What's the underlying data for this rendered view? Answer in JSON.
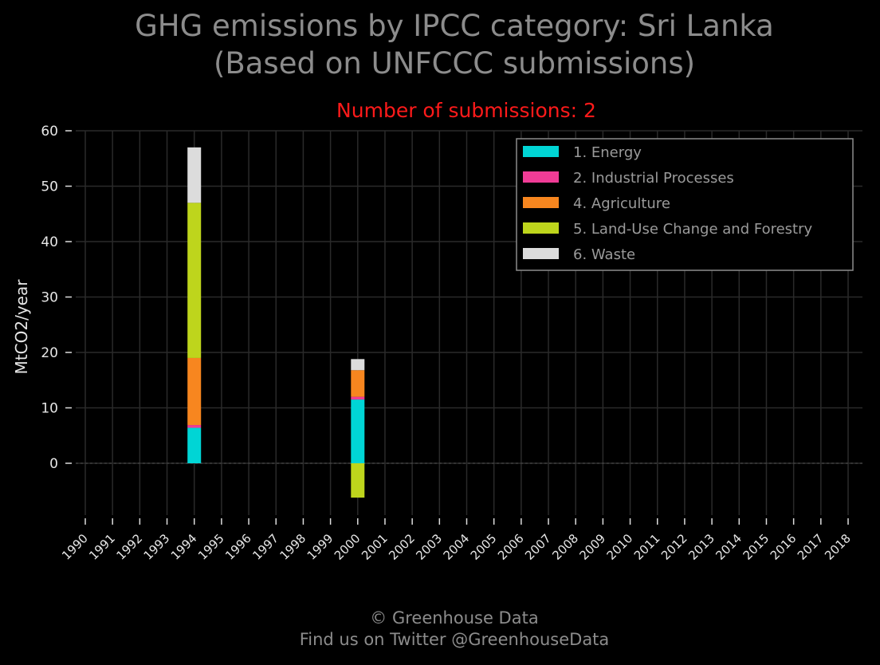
{
  "title_line1": "GHG emissions by IPCC category: Sri Lanka",
  "title_line2": "(Based on UNFCCC submissions)",
  "subtitle": "Number of submissions: 2",
  "footer_line1": "© Greenhouse Data",
  "footer_line2": "Find us on Twitter @GreenhouseData",
  "colors": {
    "background": "#000000",
    "title_text": "#8c8c8c",
    "subtitle_text": "#ff1a1a",
    "tick_text": "#e6e6e6",
    "legend_text": "#9a9a9a",
    "grid": "#2a2a2a",
    "legend_border": "#8c8c8c"
  },
  "chart_data": {
    "type": "bar",
    "stacked": true,
    "ylabel": "MtCO2/year",
    "xlabel": "",
    "ylim": [
      -10,
      60
    ],
    "yticks": [
      0,
      10,
      20,
      30,
      40,
      50,
      60
    ],
    "grid": true,
    "legend_position": "top-right",
    "categories": [
      "1990",
      "1991",
      "1992",
      "1993",
      "1994",
      "1995",
      "1996",
      "1997",
      "1998",
      "1999",
      "2000",
      "2001",
      "2002",
      "2003",
      "2004",
      "2005",
      "2006",
      "2007",
      "2008",
      "2009",
      "2010",
      "2011",
      "2012",
      "2013",
      "2014",
      "2015",
      "2016",
      "2017",
      "2018"
    ],
    "series": [
      {
        "name": "1. Energy",
        "color": "#00d5d5",
        "values": {
          "1994": 6.4,
          "2000": 11.5
        }
      },
      {
        "name": "2. Industrial Processes",
        "color": "#f03c96",
        "values": {
          "1994": 0.5,
          "2000": 0.5
        }
      },
      {
        "name": "4. Agriculture",
        "color": "#f7861f",
        "values": {
          "1994": 12.1,
          "2000": 4.8
        }
      },
      {
        "name": "5. Land-Use Change and Forestry",
        "color": "#bed51c",
        "values": {
          "1994": 28.0,
          "2000": -6.2
        }
      },
      {
        "name": "6. Waste",
        "color": "#dcdcdc",
        "values": {
          "1994": 10.0,
          "2000": 2.0
        }
      }
    ]
  }
}
